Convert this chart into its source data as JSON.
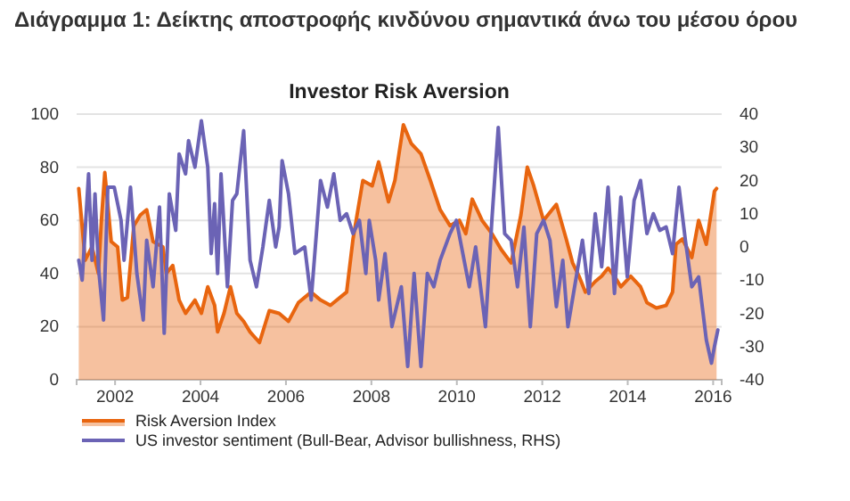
{
  "chart_data": {
    "type": "area",
    "title": "Διάγραμμα 1: Δείκτης αποστροφής κινδύνου σημαντικά άνω του μέσου όρου",
    "subtitle": "Investor Risk Aversion",
    "xlim": [
      2001.1,
      2016.2
    ],
    "xticks": [
      2002,
      2004,
      2006,
      2008,
      2010,
      2012,
      2014,
      2016
    ],
    "ylim": [
      0,
      100
    ],
    "yticks": [
      0,
      20,
      40,
      60,
      80,
      100
    ],
    "y2lim": [
      -40,
      40
    ],
    "y2ticks": [
      -40,
      -30,
      -20,
      -10,
      0,
      10,
      20,
      30,
      40
    ],
    "grid": "y",
    "legend": "bottom",
    "series": [
      {
        "name": "Risk Aversion Index",
        "color": "#e8650f",
        "x": [
          2001.15,
          2001.3,
          2001.46,
          2001.61,
          2001.68,
          2001.76,
          2001.91,
          2002.06,
          2002.17,
          2002.29,
          2002.44,
          2002.59,
          2002.74,
          2002.89,
          2003.12,
          2003.2,
          2003.35,
          2003.5,
          2003.65,
          2003.87,
          2004.02,
          2004.17,
          2004.33,
          2004.4,
          2004.55,
          2004.7,
          2004.85,
          2005.01,
          2005.16,
          2005.38,
          2005.61,
          2005.84,
          2006.06,
          2006.29,
          2006.59,
          2006.81,
          2007.04,
          2007.42,
          2007.57,
          2007.8,
          2008.02,
          2008.17,
          2008.4,
          2008.55,
          2008.75,
          2008.93,
          2009.16,
          2009.38,
          2009.61,
          2009.84,
          2010.06,
          2010.21,
          2010.36,
          2010.59,
          2010.82,
          2011.04,
          2011.27,
          2011.5,
          2011.65,
          2011.8,
          2012.03,
          2012.33,
          2012.56,
          2012.71,
          2012.86,
          2013.01,
          2013.24,
          2013.39,
          2013.54,
          2013.69,
          2013.84,
          2014.07,
          2014.3,
          2014.45,
          2014.67,
          2014.9,
          2015.05,
          2015.13,
          2015.28,
          2015.5,
          2015.66,
          2015.84,
          2016.03,
          2016.08
        ],
        "values": [
          72,
          45,
          50,
          40,
          60,
          78,
          52,
          50,
          30,
          31,
          58,
          62,
          64,
          52,
          50,
          40,
          43,
          30,
          25,
          30,
          25,
          35,
          28,
          18,
          25,
          35,
          25,
          22,
          18,
          14,
          26,
          25,
          22,
          29,
          33,
          30,
          28,
          33,
          53,
          75,
          73,
          82,
          67,
          75,
          96,
          89,
          85,
          75,
          64,
          58,
          60,
          55,
          68,
          60,
          55,
          49,
          44,
          62,
          80,
          73,
          60,
          66,
          53,
          44,
          39,
          33,
          37,
          39,
          42,
          39,
          35,
          39,
          35,
          29,
          27,
          28,
          33,
          51,
          53,
          46,
          60,
          51,
          71,
          72
        ]
      },
      {
        "name": "US investor sentiment (Bull-Bear, Advisor bullishness, RHS)",
        "type": "line",
        "axis": "y2",
        "color": "#6b63b5",
        "x": [
          2001.15,
          2001.23,
          2001.38,
          2001.46,
          2001.53,
          2001.61,
          2001.73,
          2001.83,
          2001.98,
          2002.14,
          2002.21,
          2002.36,
          2002.51,
          2002.66,
          2002.74,
          2002.89,
          2003.04,
          2003.15,
          2003.27,
          2003.42,
          2003.5,
          2003.65,
          2003.72,
          2003.87,
          2004.02,
          2004.17,
          2004.25,
          2004.33,
          2004.4,
          2004.48,
          2004.63,
          2004.75,
          2004.85,
          2005.01,
          2005.16,
          2005.31,
          2005.46,
          2005.61,
          2005.76,
          2005.84,
          2005.91,
          2006.06,
          2006.21,
          2006.44,
          2006.59,
          2006.81,
          2006.97,
          2007.12,
          2007.27,
          2007.42,
          2007.57,
          2007.72,
          2007.87,
          2007.95,
          2008.1,
          2008.17,
          2008.32,
          2008.48,
          2008.7,
          2008.85,
          2009.0,
          2009.16,
          2009.31,
          2009.46,
          2009.61,
          2009.84,
          2009.99,
          2010.14,
          2010.29,
          2010.44,
          2010.67,
          2010.82,
          2010.97,
          2011.12,
          2011.27,
          2011.42,
          2011.57,
          2011.72,
          2011.87,
          2012.03,
          2012.18,
          2012.33,
          2012.48,
          2012.6,
          2012.94,
          2013.09,
          2013.24,
          2013.39,
          2013.54,
          2013.69,
          2013.84,
          2013.99,
          2014.15,
          2014.3,
          2014.45,
          2014.6,
          2014.75,
          2014.9,
          2015.05,
          2015.2,
          2015.35,
          2015.5,
          2015.66,
          2015.84,
          2015.96,
          2016.03,
          2016.11
        ],
        "values": [
          -4,
          -10,
          22,
          -4,
          16,
          -6,
          -22,
          18,
          18,
          8,
          -4,
          18,
          -8,
          -22,
          2,
          -12,
          12,
          -26,
          16,
          5,
          28,
          22,
          32,
          24,
          38,
          24,
          -2,
          13,
          -8,
          22,
          -12,
          14,
          16,
          35,
          -4,
          -12,
          0,
          14,
          0,
          6,
          26,
          16,
          -2,
          0,
          -16,
          20,
          12,
          22,
          8,
          10,
          4,
          8,
          -8,
          8,
          -4,
          -16,
          -2,
          -24,
          -12,
          -36,
          -8,
          -36,
          -8,
          -12,
          -4,
          4,
          8,
          -2,
          -12,
          0,
          -24,
          8,
          36,
          4,
          2,
          -12,
          6,
          -24,
          4,
          8,
          2,
          -18,
          -4,
          -24,
          2,
          -14,
          10,
          -6,
          18,
          -14,
          15,
          -9,
          14,
          20,
          4,
          10,
          5,
          6,
          -2,
          18,
          2,
          -12,
          -9,
          -28,
          -35,
          -30,
          -25
        ]
      }
    ]
  }
}
